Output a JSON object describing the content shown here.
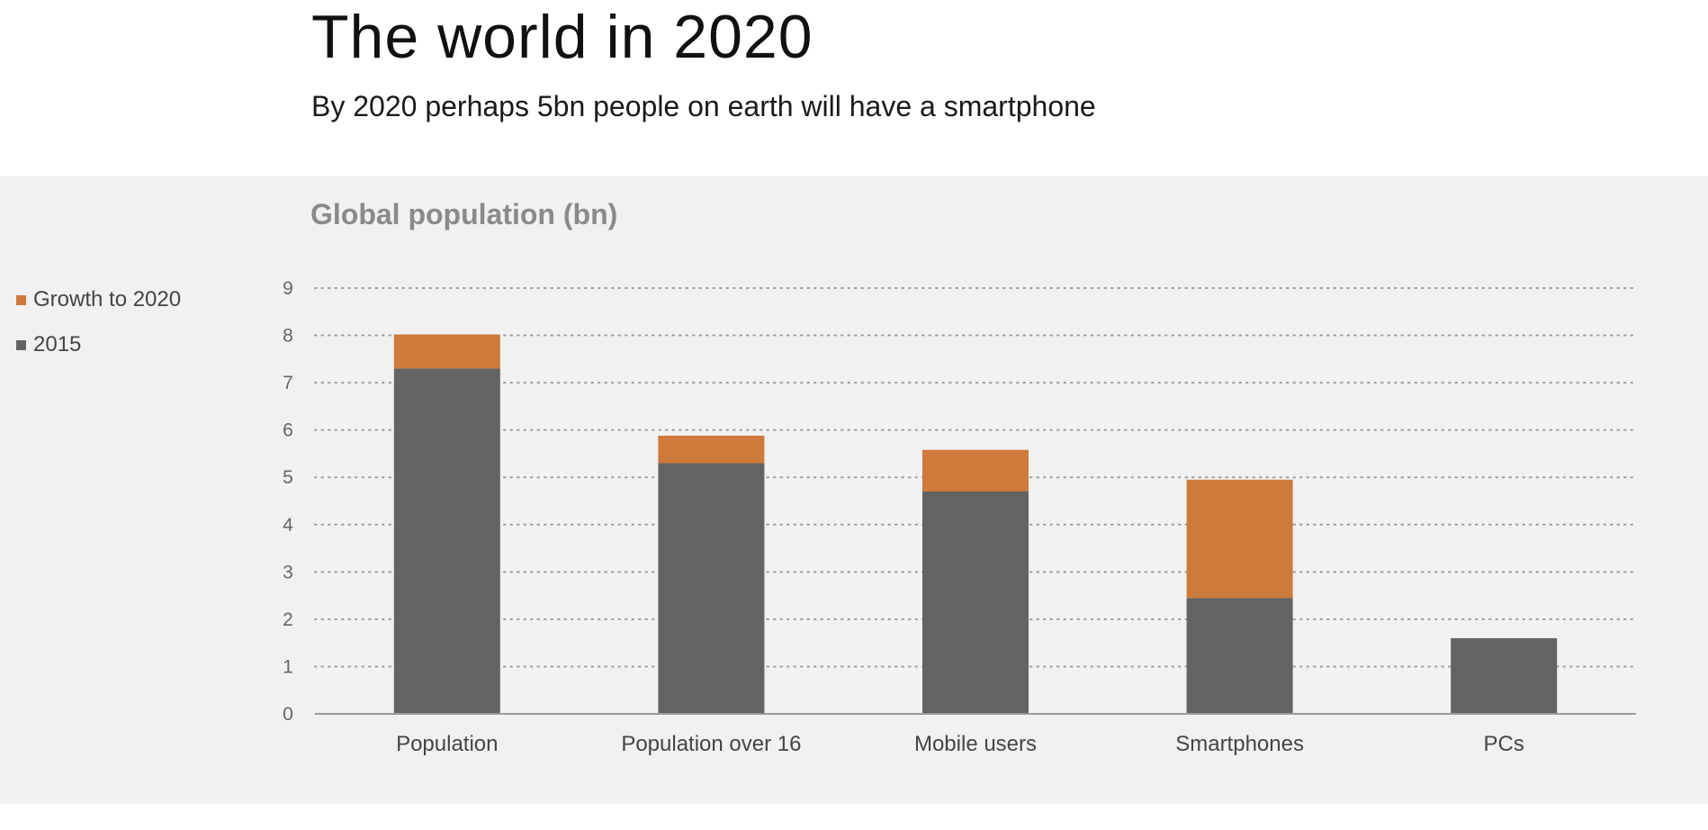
{
  "header": {
    "title": "The world in 2020",
    "subtitle": "By 2020 perhaps 5bn people on earth will have a smartphone"
  },
  "colors": {
    "panel_bg": "#f1f1f1",
    "base_2015": "#636363",
    "growth_2020": "#cd7a3b",
    "grid": "#9a9a9a",
    "axis": "#9a9a9a"
  },
  "chart_data": {
    "type": "bar",
    "stacked": true,
    "title": "Global population (bn)",
    "categories": [
      "Population",
      "Population over 16",
      "Mobile users",
      "Smartphones",
      "PCs"
    ],
    "series": [
      {
        "name": "2015",
        "color": "#636363",
        "values": [
          7.3,
          5.3,
          4.7,
          2.45,
          1.6
        ]
      },
      {
        "name": "Growth to 2020",
        "color": "#cd7a3b",
        "values": [
          0.72,
          0.58,
          0.88,
          2.5,
          0
        ]
      }
    ],
    "ylim": [
      0,
      9
    ],
    "yticks": [
      0,
      1,
      2,
      3,
      4,
      5,
      6,
      7,
      8,
      9
    ],
    "grid": true,
    "grid_style": "dotted",
    "legend_placement": "left",
    "legend": [
      "Growth to 2020",
      "2015"
    ]
  }
}
